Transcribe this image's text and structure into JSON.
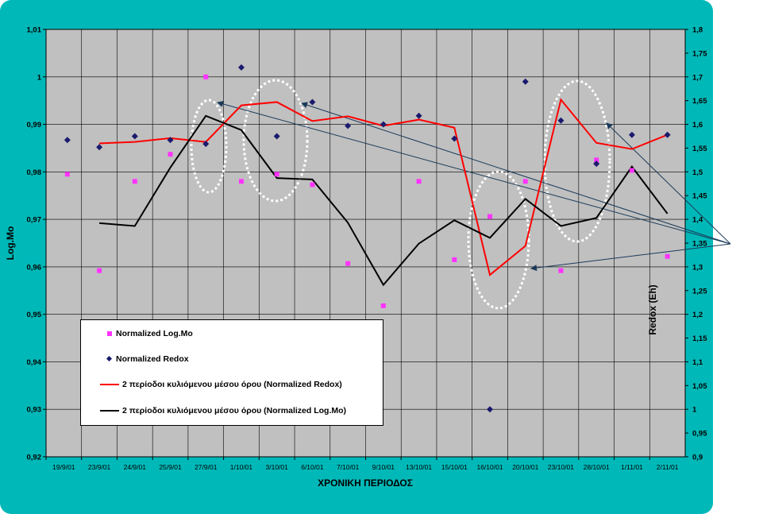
{
  "chart_data": {
    "type": "line",
    "xlabel": "ΧΡΟΝΙΚΗ ΠΕΡΙΟΔΟΣ",
    "ylabel": "Log.Mo",
    "y2label": "Redox (Eh)",
    "ylim": [
      0.92,
      1.01
    ],
    "y2lim": [
      0.9,
      1.8
    ],
    "yticks": [
      "0,92",
      "0,93",
      "0,94",
      "0,95",
      "0,96",
      "0,97",
      "0,98",
      "0,99",
      "1",
      "1,01"
    ],
    "y2ticks": [
      "0,9",
      "0,95",
      "1",
      "1,05",
      "1,1",
      "1,15",
      "1,2",
      "1,25",
      "1,3",
      "1,35",
      "1,4",
      "1,45",
      "1,5",
      "1,55",
      "1,6",
      "1,65",
      "1,7",
      "1,75",
      "1,8"
    ],
    "categories": [
      "19/9/01",
      "23/9/01",
      "24/9/01",
      "25/9/01",
      "27/9/01",
      "1/10/01",
      "3/10/01",
      "6/10/01",
      "7/10/01",
      "9/10/01",
      "13/10/01",
      "15/10/01",
      "16/10/01",
      "20/10/01",
      "23/10/01",
      "28/10/01",
      "1/11/01",
      "2/11/01"
    ],
    "grid": true,
    "legend_position": "bottom-left",
    "series": [
      {
        "name": "Normalized Log.Mo",
        "kind": "scatter",
        "axis": "left",
        "color": "#ff33ff",
        "marker": "square",
        "x": [
          0.1,
          1,
          2,
          3,
          4,
          5,
          6,
          7,
          8,
          9,
          10,
          11,
          12,
          13,
          14,
          15,
          16,
          17
        ],
        "values": [
          0.9795,
          0.9592,
          0.978,
          0.9837,
          1.0,
          0.978,
          0.9795,
          0.9773,
          0.9607,
          0.9518,
          0.978,
          0.9615,
          0.9706,
          0.978,
          0.9592,
          0.9825,
          0.9803,
          0.9622
        ]
      },
      {
        "name": "Normalized Redox",
        "kind": "scatter",
        "axis": "right",
        "color": "#1a1a6e",
        "marker": "diamond",
        "x": [
          0.1,
          1,
          2,
          3,
          4,
          5,
          6,
          7,
          8,
          9,
          10,
          11,
          12,
          13,
          14,
          15,
          16,
          17
        ],
        "values": [
          1.567,
          1.552,
          1.575,
          1.567,
          1.559,
          1.72,
          1.575,
          1.647,
          1.597,
          1.6,
          1.618,
          1.57,
          1.0,
          1.69,
          1.608,
          1.517,
          1.578,
          1.578
        ]
      },
      {
        "name": "2 περίοδοι κυλιόμενου μέσου όρου (Normalized Redox)",
        "kind": "line",
        "axis": "right",
        "color": "#ff0000",
        "x": [
          1,
          2,
          3,
          4,
          5,
          6,
          7,
          8,
          9,
          10,
          11,
          12,
          13,
          14,
          15,
          16,
          17
        ],
        "values": [
          1.56,
          1.563,
          1.571,
          1.563,
          1.64,
          1.647,
          1.607,
          1.617,
          1.597,
          1.61,
          1.593,
          1.283,
          1.344,
          1.652,
          1.561,
          1.548,
          1.578
        ]
      },
      {
        "name": "2 περίοδοι κυλιόμενου μέσου όρου (Normalized Log.Mo)",
        "kind": "line",
        "axis": "left",
        "color": "#000000",
        "x": [
          1,
          2,
          3,
          4,
          5,
          6,
          7,
          8,
          9,
          10,
          11,
          12,
          13,
          14,
          15,
          16,
          17
        ],
        "values": [
          0.9692,
          0.9686,
          0.9809,
          0.9918,
          0.9888,
          0.9787,
          0.9784,
          0.9693,
          0.9562,
          0.9649,
          0.9698,
          0.9661,
          0.9743,
          0.9686,
          0.9703,
          0.9811,
          0.9712
        ]
      }
    ]
  }
}
